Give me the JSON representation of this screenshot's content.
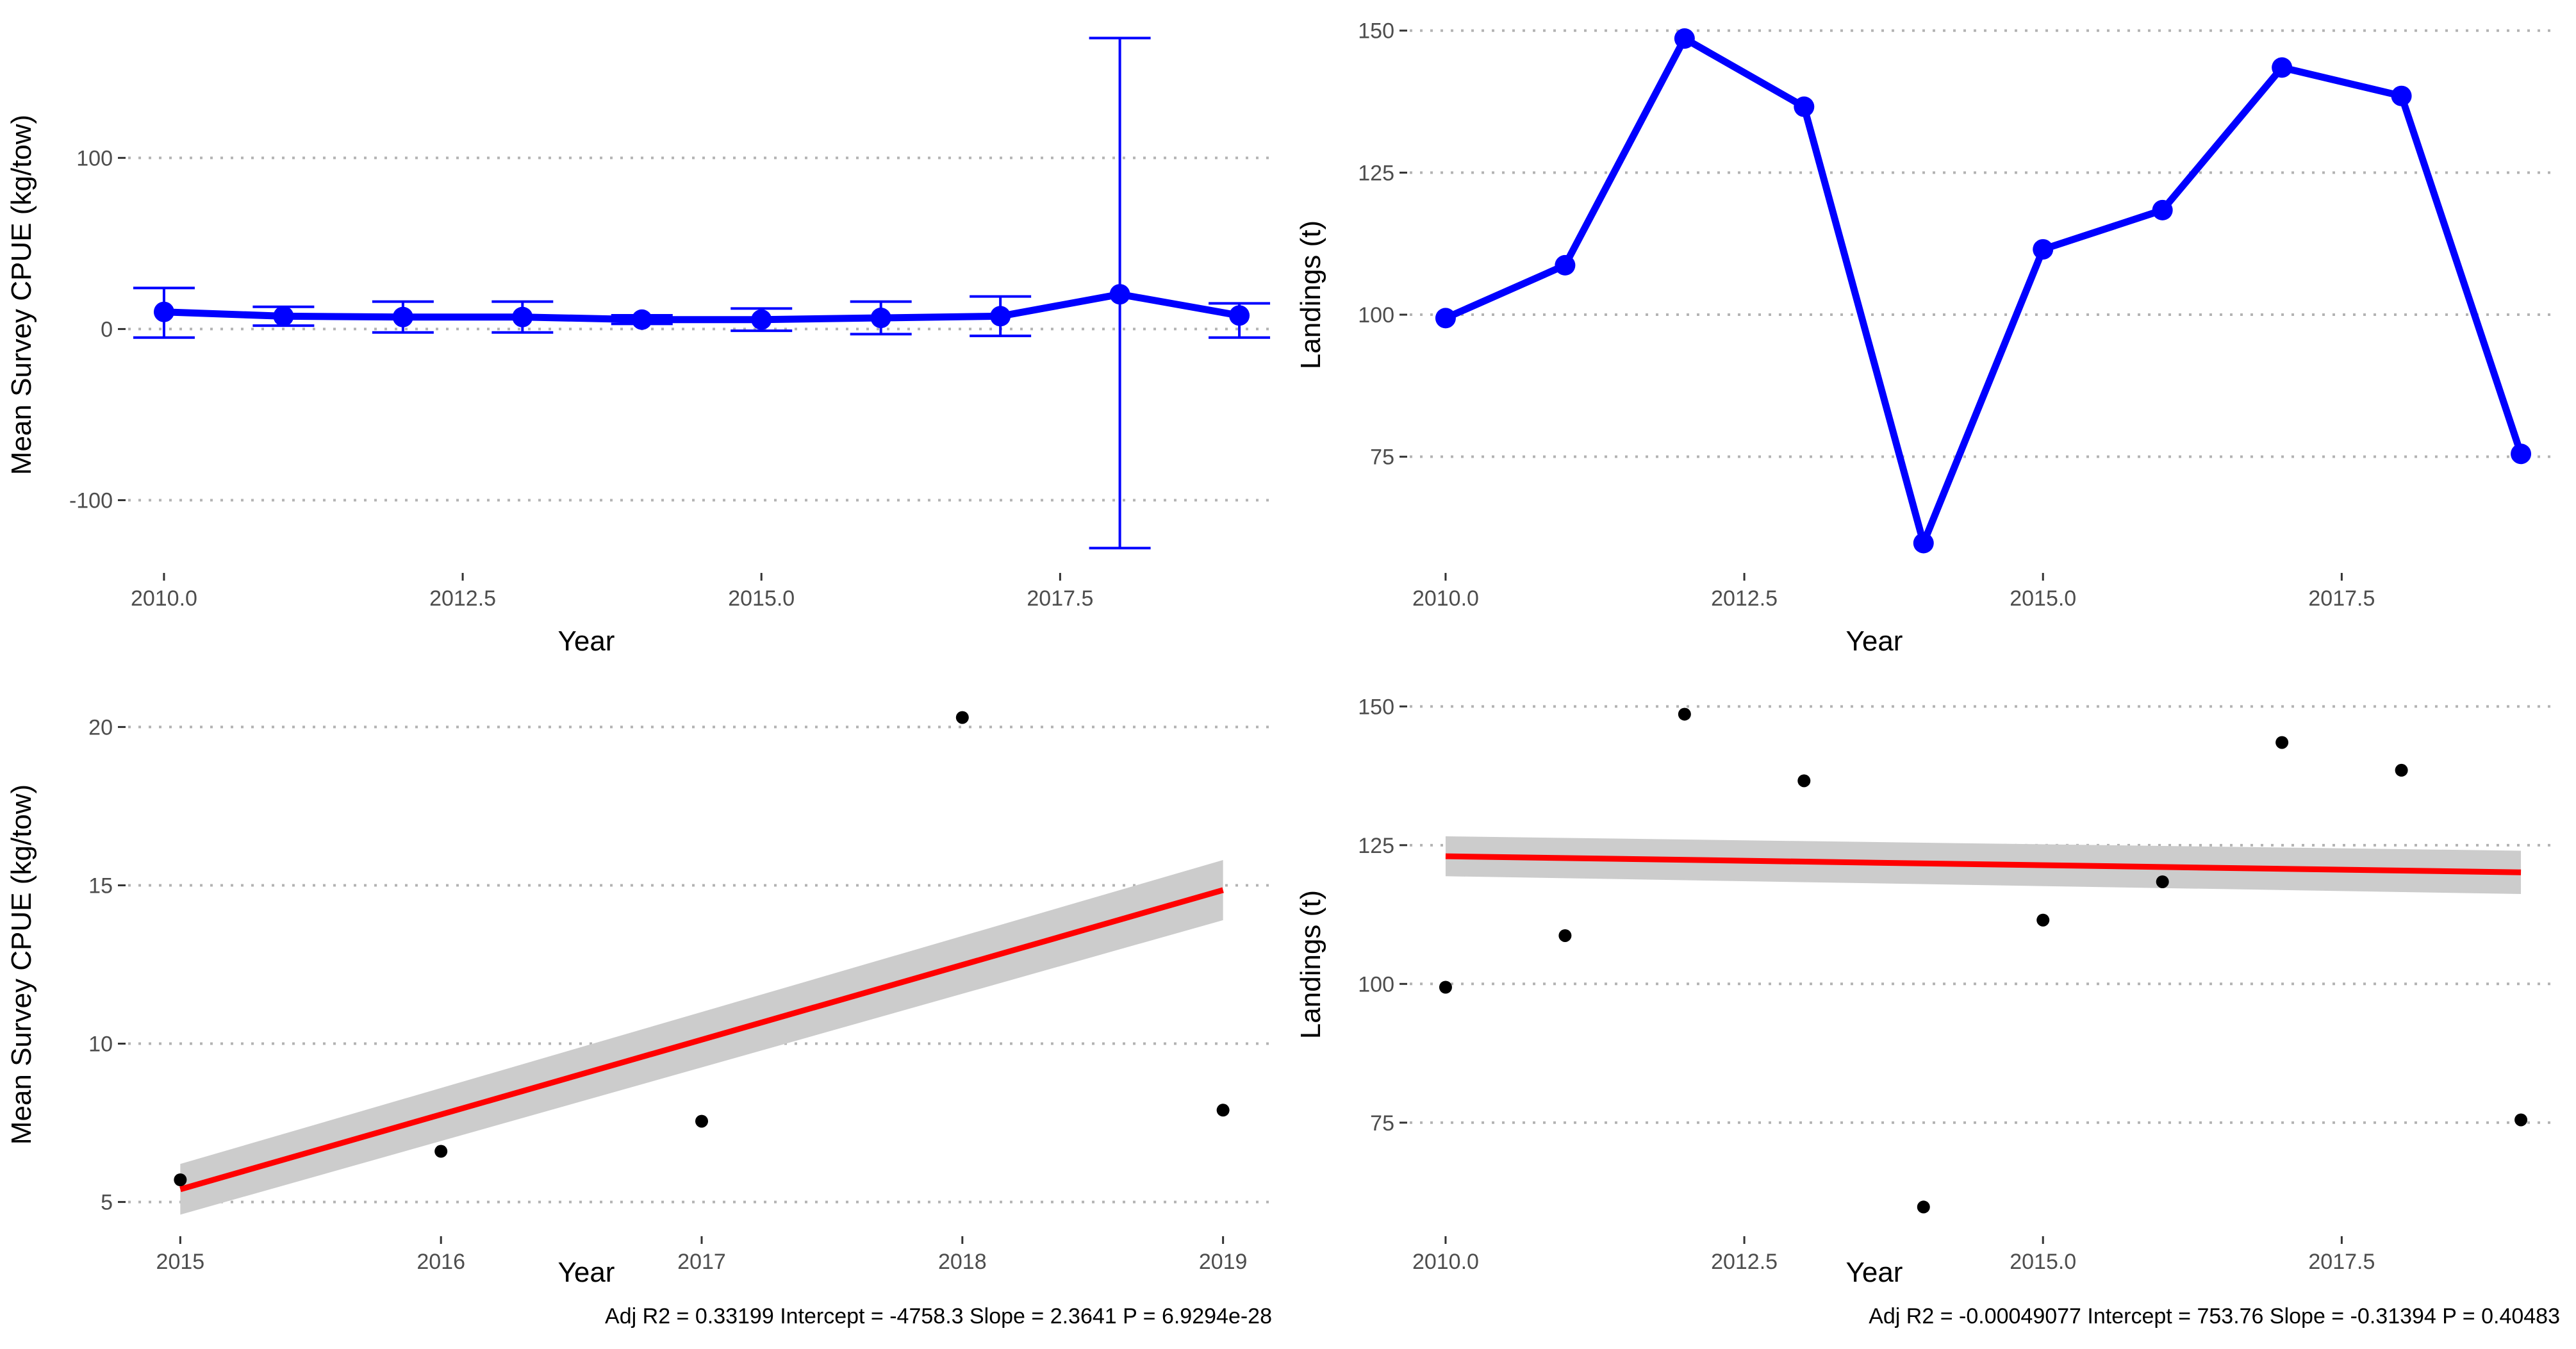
{
  "figure": {
    "panels": [
      {
        "stats": ""
      },
      {
        "stats": ""
      },
      {
        "stats": "Adj R2 =  0.33199 Intercept = -4758.3  Slope = 2.3641  P = 6.9294e-28"
      },
      {
        "stats": "Adj R2 =  -0.00049077 Intercept = 753.76  Slope = -0.31394  P = 0.40483"
      }
    ]
  },
  "colors": {
    "series_line": "#0000ff",
    "fit_line": "#ff0000",
    "confidence_band": "#cccccc",
    "points_black": "#000000",
    "gridline": "#b3b3b3",
    "tick_text": "#4d4d4d"
  },
  "chart_data": [
    {
      "type": "line",
      "title": "",
      "xlabel": "Year",
      "ylabel": "Mean Survey CPUE (kg/tow)",
      "xlim": [
        2009.7,
        2019.3
      ],
      "ylim": [
        -141,
        181
      ],
      "x_ticks": [
        2010.0,
        2012.5,
        2015.0,
        2017.5
      ],
      "x_tick_labels": [
        "2010.0",
        "2012.5",
        "2015.0",
        "2017.5"
      ],
      "y_ticks": [
        -100,
        0,
        100
      ],
      "y_tick_labels": [
        "-100",
        "0",
        "100"
      ],
      "grid": "horizontal dotted",
      "series": [
        {
          "x": [
            2010,
            2011,
            2012,
            2013,
            2014,
            2015,
            2016,
            2017,
            2018,
            2019
          ],
          "y": [
            10,
            7.5,
            7,
            7,
            5.5,
            5.5,
            6.5,
            7.5,
            20.3,
            7.9
          ],
          "error_low": [
            -5,
            2,
            -2,
            -2,
            3,
            -1,
            -3,
            -4,
            -128,
            -5
          ],
          "error_high": [
            24,
            13,
            16,
            16,
            8,
            12,
            16,
            19,
            170,
            15
          ]
        }
      ]
    },
    {
      "type": "line",
      "title": "",
      "xlabel": "Year",
      "ylabel": "Landings (t)",
      "xlim": [
        2009.7,
        2019.3
      ],
      "ylim": [
        55,
        152
      ],
      "x_ticks": [
        2010.0,
        2012.5,
        2015.0,
        2017.5
      ],
      "x_tick_labels": [
        "2010.0",
        "2012.5",
        "2015.0",
        "2017.5"
      ],
      "y_ticks": [
        75,
        100,
        125,
        150
      ],
      "y_tick_labels": [
        "75",
        "100",
        "125",
        "150"
      ],
      "grid": "horizontal dotted",
      "series": [
        {
          "x": [
            2010,
            2011,
            2012,
            2013,
            2014,
            2015,
            2016,
            2017,
            2018,
            2019
          ],
          "y": [
            99.4,
            108.7,
            148.6,
            136.6,
            59.8,
            111.5,
            118.4,
            143.5,
            138.5,
            75.5
          ]
        }
      ]
    },
    {
      "type": "scatter",
      "title": "",
      "xlabel": "Year",
      "ylabel": "Mean Survey CPUE (kg/tow)",
      "xlim": [
        2014.8,
        2019.2
      ],
      "ylim": [
        4.0,
        21.0
      ],
      "x_ticks": [
        2015,
        2016,
        2017,
        2018,
        2019
      ],
      "x_tick_labels": [
        "2015",
        "2016",
        "2017",
        "2018",
        "2019"
      ],
      "y_ticks": [
        5,
        10,
        15,
        20
      ],
      "y_tick_labels": [
        "5",
        "10",
        "15",
        "20"
      ],
      "grid": "horizontal dotted",
      "points": {
        "x": [
          2015,
          2016,
          2017,
          2018,
          2019
        ],
        "y": [
          5.7,
          6.6,
          7.55,
          20.3,
          7.9
        ]
      },
      "fit": {
        "x": [
          2015,
          2019
        ],
        "y": [
          5.4,
          14.85
        ],
        "band_low": [
          4.6,
          13.9
        ],
        "band_high": [
          6.2,
          15.8
        ]
      }
    },
    {
      "type": "scatter",
      "title": "",
      "xlabel": "Year",
      "ylabel": "Landings (t)",
      "xlim": [
        2009.7,
        2019.3
      ],
      "ylim": [
        55,
        152
      ],
      "x_ticks": [
        2010.0,
        2012.5,
        2015.0,
        2017.5
      ],
      "x_tick_labels": [
        "2010.0",
        "2012.5",
        "2015.0",
        "2017.5"
      ],
      "y_ticks": [
        75,
        100,
        125,
        150
      ],
      "y_tick_labels": [
        "75",
        "100",
        "125",
        "150"
      ],
      "grid": "horizontal dotted",
      "points": {
        "x": [
          2010,
          2011,
          2012,
          2013,
          2014,
          2015,
          2016,
          2017,
          2018,
          2019
        ],
        "y": [
          99.4,
          108.7,
          148.6,
          136.6,
          59.8,
          111.5,
          118.4,
          143.5,
          138.5,
          75.5
        ]
      },
      "fit": {
        "x": [
          2010,
          2019
        ],
        "y": [
          123.0,
          120.1
        ],
        "band_low": [
          119.4,
          116.2
        ],
        "band_high": [
          126.6,
          124.0
        ]
      }
    }
  ]
}
